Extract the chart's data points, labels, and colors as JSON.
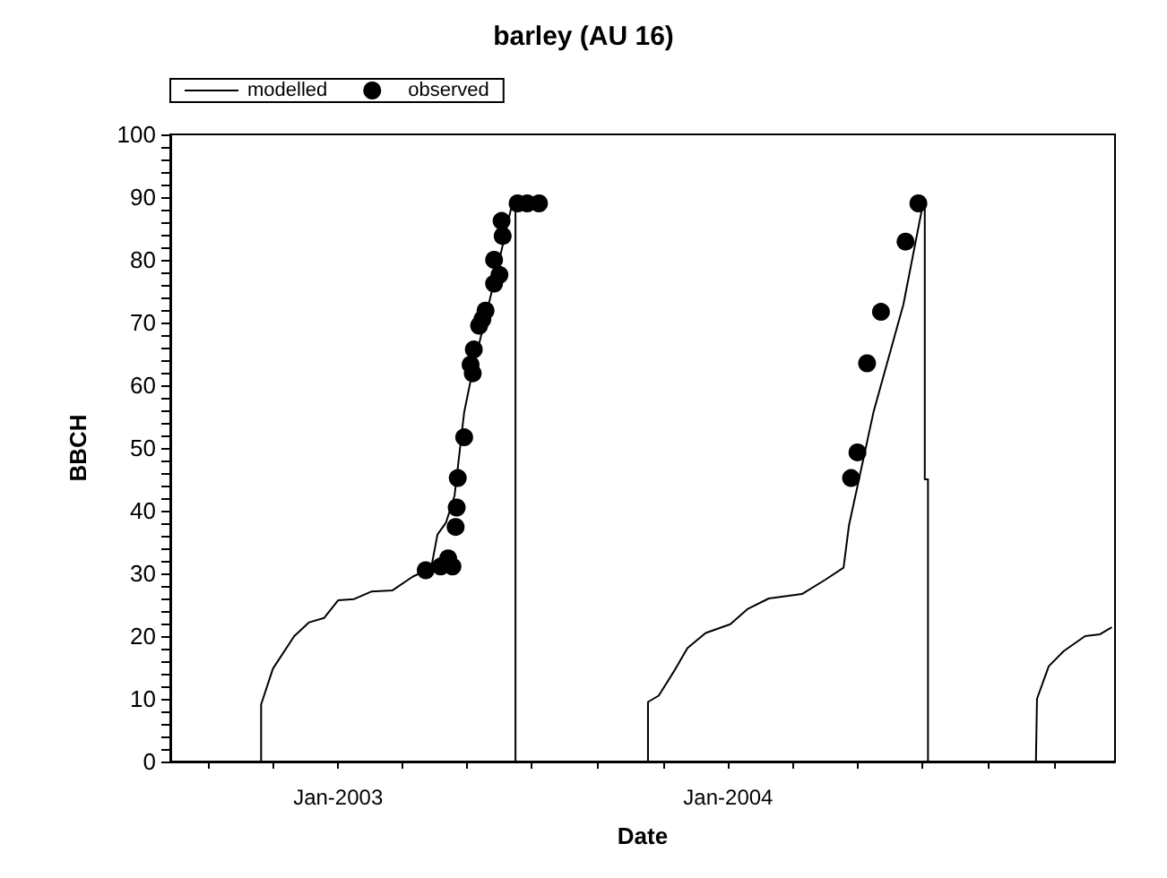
{
  "chart_data": {
    "type": "line",
    "title": "barley (AU 16)",
    "xlabel": "Date",
    "ylabel": "BBCH",
    "xlim": [
      "2002-07-28",
      "2004-12-28"
    ],
    "xticks": [
      {
        "value": "2002-09-01",
        "label": null
      },
      {
        "value": "2002-11-01",
        "label": null
      },
      {
        "value": "2003-01-01",
        "label": "Jan-2003"
      },
      {
        "value": "2003-03-01",
        "label": null
      },
      {
        "value": "2003-05-01",
        "label": null
      },
      {
        "value": "2003-07-01",
        "label": null
      },
      {
        "value": "2003-09-01",
        "label": null
      },
      {
        "value": "2003-11-01",
        "label": null
      },
      {
        "value": "2004-01-01",
        "label": "Jan-2004"
      },
      {
        "value": "2004-03-01",
        "label": null
      },
      {
        "value": "2004-05-01",
        "label": null
      },
      {
        "value": "2004-07-01",
        "label": null
      },
      {
        "value": "2004-09-01",
        "label": null
      },
      {
        "value": "2004-11-01",
        "label": null
      }
    ],
    "ylim": [
      0,
      100
    ],
    "yticks": [
      0,
      {
        "value": 2,
        "label": null
      },
      {
        "value": 4,
        "label": null
      },
      {
        "value": 6,
        "label": null
      },
      {
        "value": 8,
        "label": null
      },
      10,
      {
        "value": 12,
        "label": null
      },
      {
        "value": 14,
        "label": null
      },
      {
        "value": 16,
        "label": null
      },
      {
        "value": 18,
        "label": null
      },
      20,
      {
        "value": 22,
        "label": null
      },
      {
        "value": 24,
        "label": null
      },
      {
        "value": 26,
        "label": null
      },
      {
        "value": 28,
        "label": null
      },
      30,
      {
        "value": 32,
        "label": null
      },
      {
        "value": 34,
        "label": null
      },
      {
        "value": 36,
        "label": null
      },
      {
        "value": 38,
        "label": null
      },
      40,
      {
        "value": 42,
        "label": null
      },
      {
        "value": 44,
        "label": null
      },
      {
        "value": 46,
        "label": null
      },
      {
        "value": 48,
        "label": null
      },
      50,
      {
        "value": 52,
        "label": null
      },
      {
        "value": 54,
        "label": null
      },
      {
        "value": 56,
        "label": null
      },
      {
        "value": 58,
        "label": null
      },
      60,
      {
        "value": 62,
        "label": null
      },
      {
        "value": 64,
        "label": null
      },
      {
        "value": 66,
        "label": null
      },
      {
        "value": 68,
        "label": null
      },
      70,
      {
        "value": 72,
        "label": null
      },
      {
        "value": 74,
        "label": null
      },
      {
        "value": 76,
        "label": null
      },
      {
        "value": 78,
        "label": null
      },
      80,
      {
        "value": 82,
        "label": null
      },
      {
        "value": 84,
        "label": null
      },
      {
        "value": 86,
        "label": null
      },
      {
        "value": 88,
        "label": null
      },
      90,
      {
        "value": 92,
        "label": null
      },
      {
        "value": 94,
        "label": null
      },
      {
        "value": 96,
        "label": null
      },
      {
        "value": 98,
        "label": null
      },
      100
    ],
    "grid": false,
    "legend": "top left",
    "series": [
      {
        "name": "modelled",
        "color": "#000000",
        "marker": "none",
        "line_style": "solid",
        "x": [
          "2002-10-21",
          "2002-10-21",
          "2002-11-01",
          "2002-11-21",
          "2002-12-05",
          "2002-12-19",
          "2003-01-01",
          "2003-01-16",
          "2003-02-01",
          "2003-02-21",
          "2003-03-12",
          "2003-03-29",
          "2003-04-04",
          "2003-04-12",
          "2003-04-20",
          "2003-04-29",
          "2003-05-07",
          "2003-05-30",
          "2003-06-13",
          "2003-06-16",
          "2003-06-16",
          "2003-08-01",
          "2003-10-18",
          "2003-10-18",
          "2003-10-28",
          "2003-11-11",
          "2003-11-24",
          "2003-12-11",
          "2004-01-03",
          "2004-01-19",
          "2004-02-08",
          "2004-03-10",
          "2004-04-01",
          "2004-04-18",
          "2004-04-23",
          "2004-05-16",
          "2004-06-13",
          "2004-07-02",
          "2004-07-03",
          "2004-07-03",
          "2004-07-06",
          "2004-07-06",
          "2004-08-01",
          "2004-10-15",
          "2004-10-16",
          "2004-10-27",
          "2004-11-10",
          "2004-11-30",
          "2004-12-14",
          "2004-12-25"
        ],
        "values": [
          0,
          9.1,
          14.8,
          20,
          22.2,
          22.9,
          25.7,
          25.9,
          27.1,
          27.3,
          29.5,
          30.8,
          36.2,
          38.1,
          42.4,
          55.7,
          62.4,
          78.6,
          89,
          89,
          0,
          null,
          0,
          9.5,
          10.5,
          14.3,
          18.1,
          20.5,
          21.9,
          24.3,
          26,
          26.7,
          29,
          30.9,
          37.6,
          55.7,
          72.9,
          89.5,
          89,
          45,
          45,
          0,
          null,
          0,
          10,
          15.2,
          17.6,
          20,
          20.3,
          21.4
        ]
      },
      {
        "name": "observed",
        "type": "scatter",
        "color": "#000000",
        "marker": "circle",
        "x": [
          "2003-03-24",
          "2003-04-07",
          "2003-04-14",
          "2003-04-18",
          "2003-04-21",
          "2003-04-22",
          "2003-04-23",
          "2003-04-29",
          "2003-05-05",
          "2003-05-07",
          "2003-05-08",
          "2003-05-13",
          "2003-05-16",
          "2003-05-19",
          "2003-05-27",
          "2003-05-27",
          "2003-06-01",
          "2003-06-04",
          "2003-06-03",
          "2003-06-18",
          "2003-06-27",
          "2003-07-08",
          "2004-04-25",
          "2004-05-01",
          "2004-05-10",
          "2004-05-23",
          "2004-06-15",
          "2004-06-27"
        ],
        "values": [
          30.5,
          31.1,
          32.4,
          31.1,
          37.4,
          40.5,
          45.2,
          51.7,
          63.3,
          61.9,
          65.7,
          69.5,
          70.5,
          71.9,
          76.2,
          80,
          77.6,
          83.8,
          86.2,
          89,
          89,
          89,
          45.2,
          49.3,
          63.5,
          71.7,
          82.9,
          89
        ]
      }
    ]
  }
}
